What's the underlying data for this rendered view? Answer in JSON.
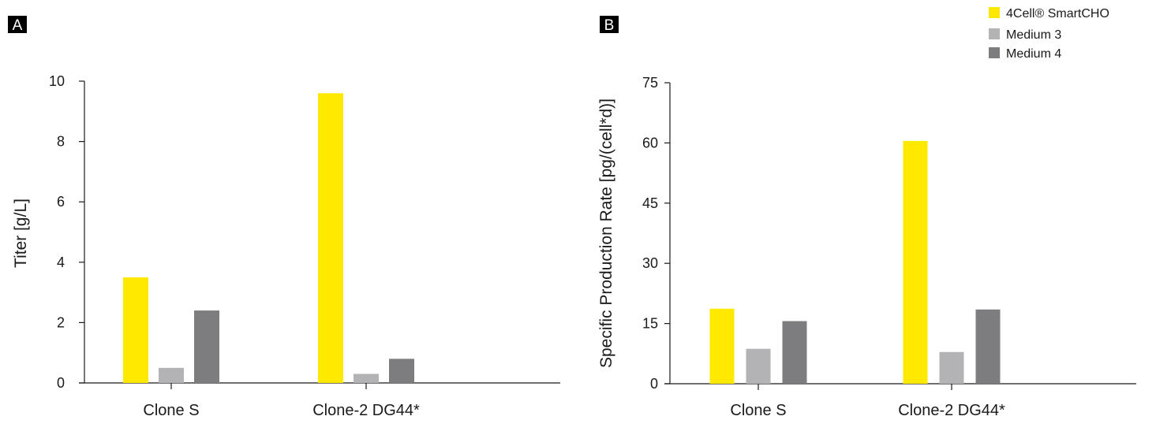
{
  "legend": [
    {
      "label": "4Cell® SmartCHO",
      "color": "#ffe900"
    },
    {
      "label": "Medium 3",
      "color": "#b3b3b5"
    },
    {
      "label": "Medium 4",
      "color": "#7d7d80"
    }
  ],
  "chart_data": [
    {
      "type": "bar",
      "panel": "A",
      "title": "",
      "xlabel": "",
      "ylabel": "Titer [g/L]",
      "ylim": [
        0,
        10
      ],
      "yticks": [
        "0",
        "2",
        "4",
        "6",
        "8",
        "10"
      ],
      "categories": [
        "Clone S",
        "Clone-2 DG44*"
      ],
      "series": [
        {
          "name": "4Cell® SmartCHO",
          "values": [
            3.5,
            9.6
          ]
        },
        {
          "name": "Medium 3",
          "values": [
            0.5,
            0.3
          ]
        },
        {
          "name": "Medium 4",
          "values": [
            2.4,
            0.8
          ]
        }
      ],
      "grid": false,
      "legend_position": "top-right"
    },
    {
      "type": "bar",
      "panel": "B",
      "title": "",
      "xlabel": "",
      "ylabel": "Specific Production Rate [pg/(cell*d)]",
      "ylim": [
        0,
        75
      ],
      "yticks": [
        "0",
        "15",
        "30",
        "45",
        "60",
        "75"
      ],
      "categories": [
        "Clone S",
        "Clone-2 DG44*"
      ],
      "series": [
        {
          "name": "4Cell® SmartCHO",
          "values": [
            18.7,
            60.5
          ]
        },
        {
          "name": "Medium 3",
          "values": [
            8.7,
            7.9
          ]
        },
        {
          "name": "Medium 4",
          "values": [
            15.6,
            18.5
          ]
        }
      ],
      "grid": false,
      "legend_position": "top-right"
    }
  ]
}
